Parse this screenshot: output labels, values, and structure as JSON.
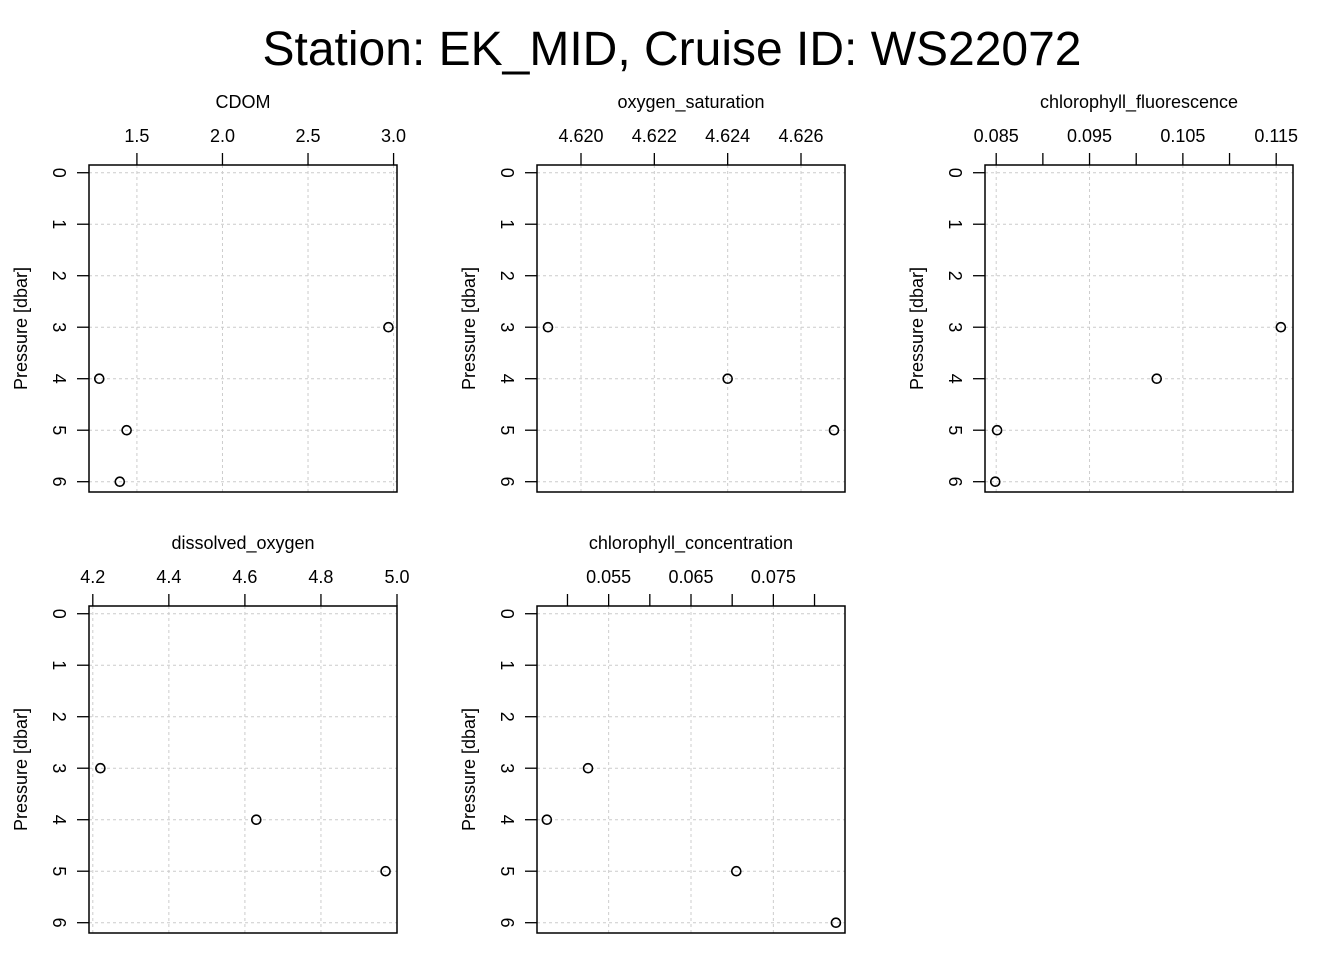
{
  "title": "Station: EK_MID, Cruise ID: WS22072",
  "chart_data": [
    {
      "type": "scatter",
      "title": "CDOM",
      "xlabel": "CDOM",
      "ylabel": "Pressure [dbar]",
      "x_axis_position": "top",
      "y_axis_reversed": true,
      "xlim": [
        1.22,
        3.02
      ],
      "ylim": [
        6.2,
        -0.15
      ],
      "xticks": [
        1.5,
        2.0,
        2.5,
        3.0
      ],
      "xtick_labels": [
        "1.5",
        "2.0",
        "2.5",
        "3.0"
      ],
      "yticks": [
        0,
        1,
        2,
        3,
        4,
        5,
        6
      ],
      "ytick_labels": [
        "0",
        "1",
        "2",
        "3",
        "4",
        "5",
        "6"
      ],
      "grid": true,
      "points": [
        {
          "x": 2.97,
          "y": 3
        },
        {
          "x": 1.28,
          "y": 4
        },
        {
          "x": 1.44,
          "y": 5
        },
        {
          "x": 1.4,
          "y": 6
        }
      ]
    },
    {
      "type": "scatter",
      "title": "oxygen_saturation",
      "xlabel": "oxygen_saturation",
      "ylabel": "Pressure [dbar]",
      "x_axis_position": "top",
      "y_axis_reversed": true,
      "xlim": [
        4.6188,
        4.6272
      ],
      "ylim": [
        6.2,
        -0.15
      ],
      "xticks": [
        4.62,
        4.622,
        4.624,
        4.626
      ],
      "xtick_labels": [
        "4.620",
        "4.622",
        "4.624",
        "4.626"
      ],
      "yticks": [
        0,
        1,
        2,
        3,
        4,
        5,
        6
      ],
      "ytick_labels": [
        "0",
        "1",
        "2",
        "3",
        "4",
        "5",
        "6"
      ],
      "grid": true,
      "points": [
        {
          "x": 4.6191,
          "y": 3
        },
        {
          "x": 4.624,
          "y": 4
        },
        {
          "x": 4.6269,
          "y": 5
        }
      ]
    },
    {
      "type": "scatter",
      "title": "chlorophyll_fluorescence",
      "xlabel": "chlorophyll_fluorescence",
      "ylabel": "Pressure [dbar]",
      "x_axis_position": "top",
      "y_axis_reversed": true,
      "xlim": [
        0.0838,
        0.1168
      ],
      "ylim": [
        6.2,
        -0.15
      ],
      "xticks": [
        0.085,
        0.09,
        0.095,
        0.1,
        0.105,
        0.11,
        0.115
      ],
      "xtick_labels": [
        "0.085",
        "",
        "0.095",
        "",
        "0.105",
        "",
        "0.115"
      ],
      "yticks": [
        0,
        1,
        2,
        3,
        4,
        5,
        6
      ],
      "ytick_labels": [
        "0",
        "1",
        "2",
        "3",
        "4",
        "5",
        "6"
      ],
      "grid": true,
      "points": [
        {
          "x": 0.1155,
          "y": 3
        },
        {
          "x": 0.1022,
          "y": 4
        },
        {
          "x": 0.0851,
          "y": 5
        },
        {
          "x": 0.0849,
          "y": 6
        }
      ]
    },
    {
      "type": "scatter",
      "title": "dissolved_oxygen",
      "xlabel": "dissolved_oxygen",
      "ylabel": "Pressure [dbar]",
      "x_axis_position": "top",
      "y_axis_reversed": true,
      "xlim": [
        4.19,
        5.0
      ],
      "ylim": [
        6.2,
        -0.15
      ],
      "xticks": [
        4.2,
        4.4,
        4.6,
        4.8,
        5.0
      ],
      "xtick_labels": [
        "4.2",
        "4.4",
        "4.6",
        "4.8",
        "5.0"
      ],
      "yticks": [
        0,
        1,
        2,
        3,
        4,
        5,
        6
      ],
      "ytick_labels": [
        "0",
        "1",
        "2",
        "3",
        "4",
        "5",
        "6"
      ],
      "grid": true,
      "points": [
        {
          "x": 4.22,
          "y": 3
        },
        {
          "x": 4.63,
          "y": 4
        },
        {
          "x": 4.97,
          "y": 5
        }
      ]
    },
    {
      "type": "scatter",
      "title": "chlorophyll_concentration",
      "xlabel": "chlorophyll_concentration",
      "ylabel": "Pressure [dbar]",
      "x_axis_position": "top",
      "y_axis_reversed": true,
      "xlim": [
        0.0463,
        0.0837
      ],
      "ylim": [
        6.2,
        -0.15
      ],
      "xticks": [
        0.05,
        0.055,
        0.06,
        0.065,
        0.07,
        0.075,
        0.08
      ],
      "xtick_labels": [
        "",
        "0.055",
        "",
        "0.065",
        "",
        "0.075",
        ""
      ],
      "yticks": [
        0,
        1,
        2,
        3,
        4,
        5,
        6
      ],
      "ytick_labels": [
        "0",
        "1",
        "2",
        "3",
        "4",
        "5",
        "6"
      ],
      "grid": true,
      "points": [
        {
          "x": 0.0525,
          "y": 3
        },
        {
          "x": 0.0475,
          "y": 4
        },
        {
          "x": 0.0705,
          "y": 5
        },
        {
          "x": 0.0826,
          "y": 6
        }
      ]
    }
  ]
}
